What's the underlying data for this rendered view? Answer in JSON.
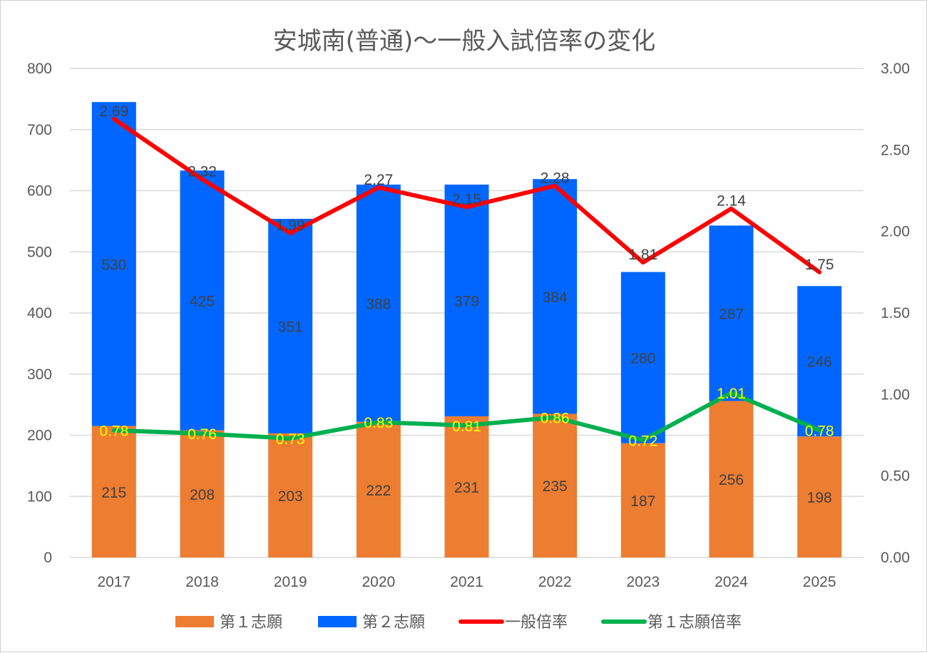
{
  "chart_data": {
    "type": "bar",
    "stacked": true,
    "title": "安城南(普通)～一般入試倍率の変化",
    "categories": [
      "2017",
      "2018",
      "2019",
      "2020",
      "2021",
      "2022",
      "2023",
      "2024",
      "2025"
    ],
    "series": [
      {
        "name": "第１志願",
        "kind": "bar",
        "axis": "left",
        "color": "#ED7D31",
        "values": [
          215,
          208,
          203,
          222,
          231,
          235,
          187,
          256,
          198
        ]
      },
      {
        "name": "第２志願",
        "kind": "bar",
        "axis": "left",
        "color": "#0066FF",
        "values": [
          530,
          425,
          351,
          388,
          379,
          384,
          280,
          287,
          246
        ]
      },
      {
        "name": "一般倍率",
        "kind": "line",
        "axis": "right",
        "color": "#FF0000",
        "values": [
          2.69,
          2.32,
          1.99,
          2.27,
          2.15,
          2.28,
          1.81,
          2.14,
          1.75
        ]
      },
      {
        "name": "第１志願倍率",
        "kind": "line",
        "axis": "right",
        "color": "#00B050",
        "values": [
          0.78,
          0.76,
          0.73,
          0.83,
          0.81,
          0.86,
          0.72,
          1.01,
          0.78
        ]
      }
    ],
    "ylim_left": [
      0,
      800
    ],
    "yticks_left": [
      "0",
      "100",
      "200",
      "300",
      "400",
      "500",
      "600",
      "700",
      "800"
    ],
    "ylim_right": [
      0,
      3
    ],
    "yticks_right": [
      "0.00",
      "0.50",
      "1.00",
      "1.50",
      "2.00",
      "2.50",
      "3.00"
    ],
    "grid": true,
    "legend_position": "bottom"
  }
}
